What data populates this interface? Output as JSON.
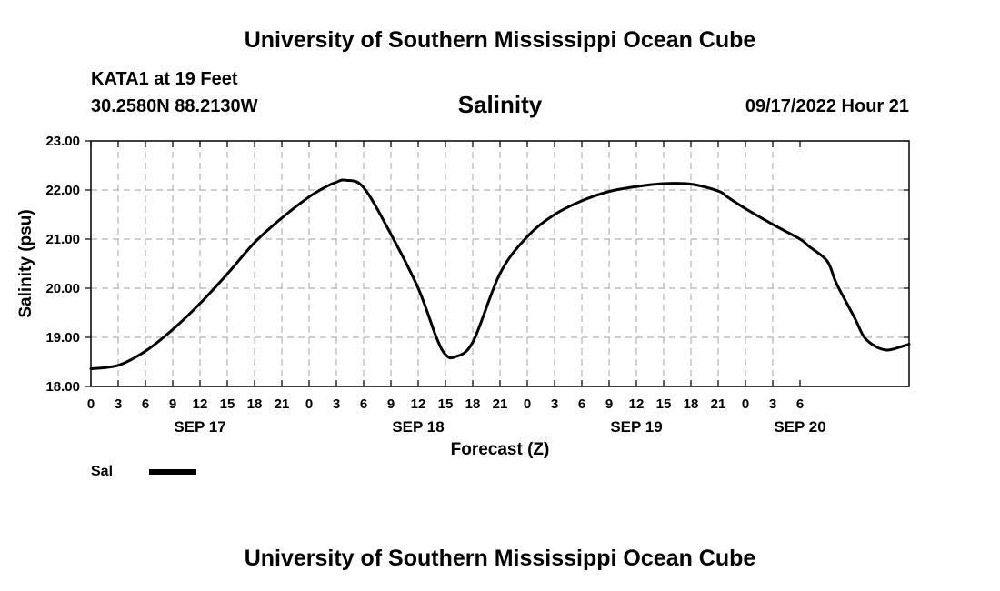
{
  "header": {
    "title": "University of Southern Mississippi Ocean Cube",
    "station": "KATA1 at 19 Feet",
    "coordinates": "30.2580N  88.2130W",
    "chart_title": "Salinity",
    "datetime": "09/17/2022 Hour 21"
  },
  "footer": {
    "title": "University of Southern Mississippi Ocean Cube"
  },
  "legend": {
    "label": "Sal",
    "color": "#000000"
  },
  "chart_data": {
    "type": "line",
    "title": "Salinity",
    "xlabel": "Forecast (Z)",
    "ylabel": "Salinity (psu)",
    "ylim": [
      18.0,
      23.0
    ],
    "y_ticks": [
      "18.00",
      "19.00",
      "20.00",
      "21.00",
      "22.00",
      "23.00"
    ],
    "x_ticks": [
      "0",
      "3",
      "6",
      "9",
      "12",
      "15",
      "18",
      "21",
      "0",
      "3",
      "6",
      "9",
      "12",
      "15",
      "18",
      "21",
      "0",
      "3",
      "6",
      "9",
      "12",
      "15",
      "18",
      "21",
      "0",
      "3",
      "6"
    ],
    "date_labels": [
      {
        "label": "SEP 17",
        "tick_index": 4
      },
      {
        "label": "SEP 18",
        "tick_index": 12
      },
      {
        "label": "SEP 19",
        "tick_index": 20
      },
      {
        "label": "SEP 20",
        "tick_index": 26
      }
    ],
    "grid": true,
    "series": [
      {
        "name": "Sal",
        "x_hours_label": "hours from SEP 17 00Z",
        "x": [
          0,
          3,
          6,
          9,
          12,
          15,
          18,
          21,
          24,
          26,
          27,
          28,
          30,
          33,
          36,
          38,
          39,
          40,
          42,
          45,
          48,
          51,
          54,
          57,
          60,
          63,
          66,
          69,
          70,
          72,
          75,
          78,
          79,
          81,
          82,
          84,
          85,
          86,
          87,
          88,
          90
        ],
        "values": [
          18.36,
          18.43,
          18.72,
          19.16,
          19.69,
          20.29,
          20.93,
          21.43,
          21.86,
          22.08,
          22.16,
          22.2,
          22.05,
          21.1,
          20.0,
          19.0,
          18.65,
          18.6,
          18.9,
          20.3,
          21.05,
          21.5,
          21.78,
          21.97,
          22.07,
          22.13,
          22.12,
          21.98,
          21.86,
          21.62,
          21.3,
          21.0,
          20.85,
          20.55,
          20.1,
          19.4,
          19.02,
          18.85,
          18.76,
          18.75,
          18.86
        ]
      }
    ]
  }
}
